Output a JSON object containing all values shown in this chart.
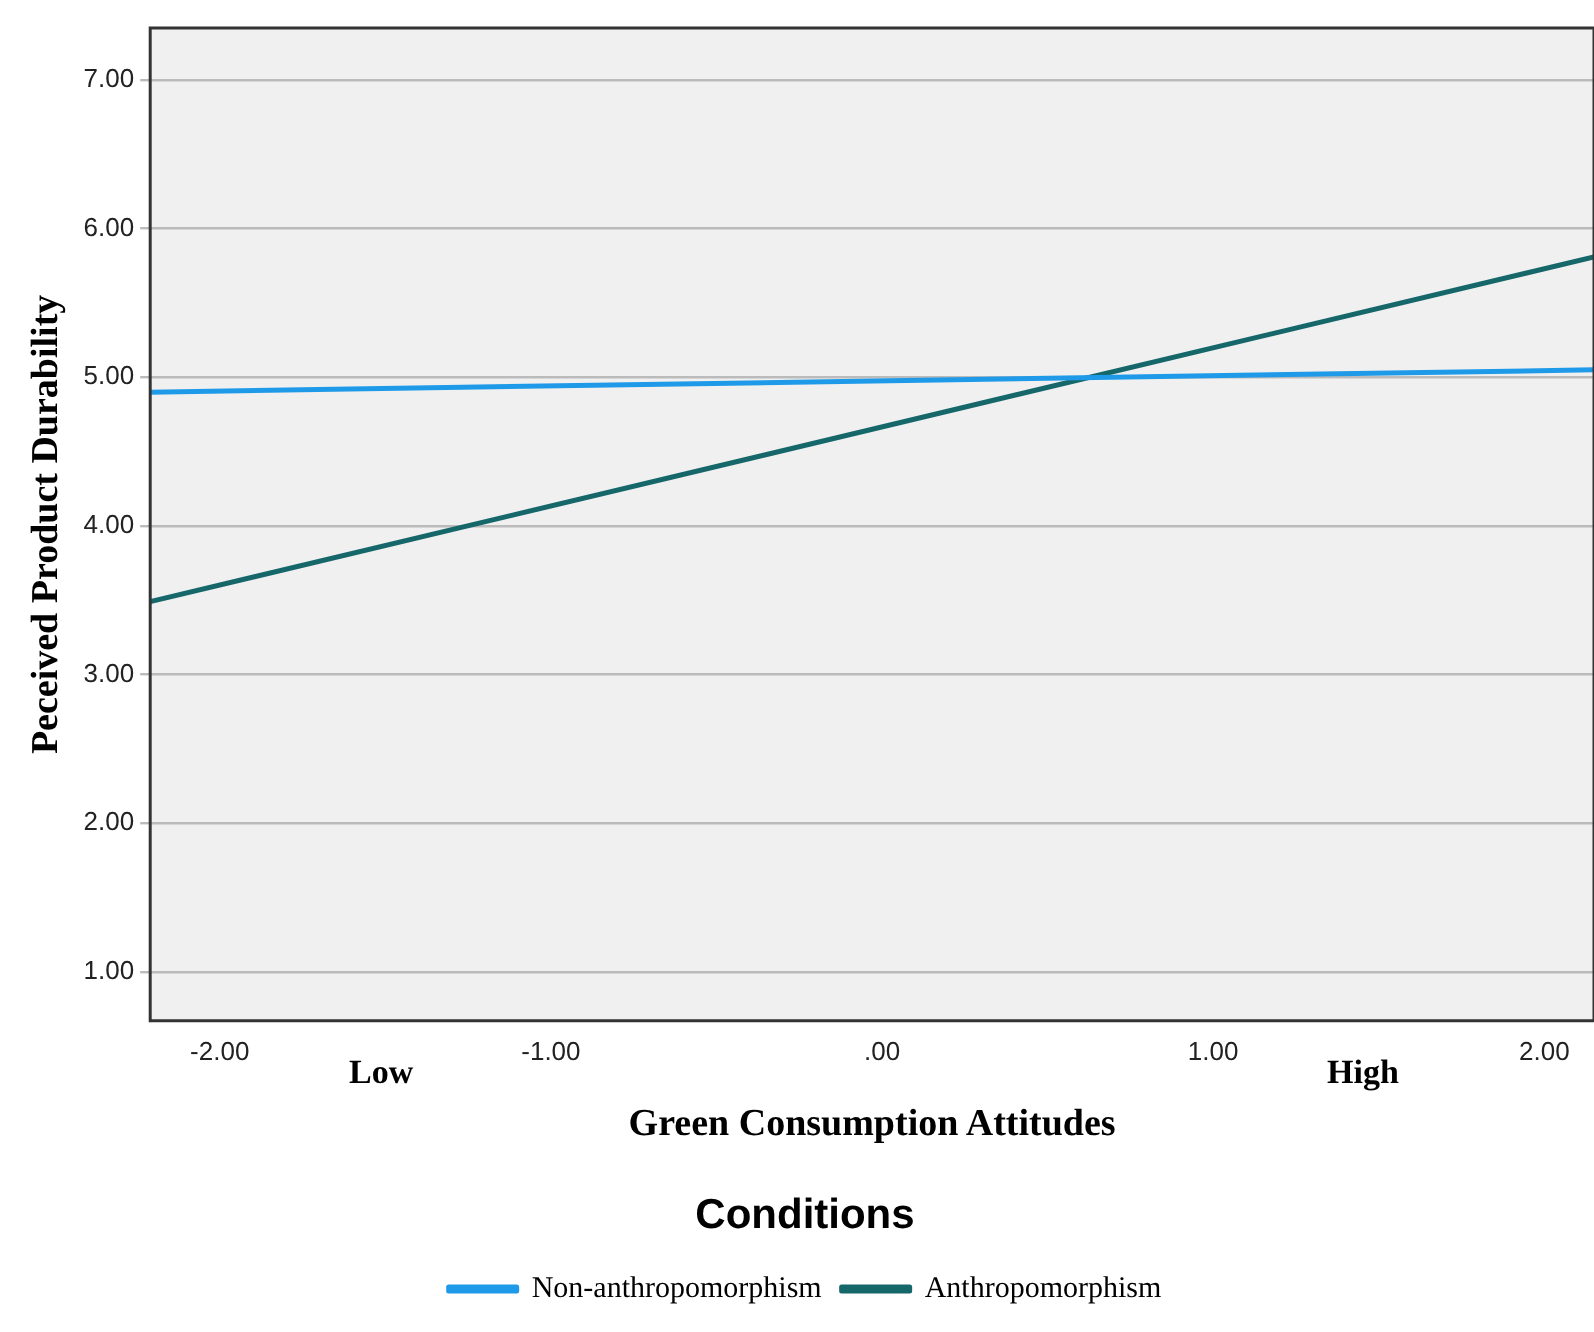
{
  "chart_data": {
    "type": "line",
    "xlabel": "Green Consumption Attitudes",
    "ylabel": "Peceived Product Durability",
    "legend_title": "Conditions",
    "legend": "bottom",
    "grid": "y",
    "marker": "none",
    "line_style": "solid",
    "xlim": [
      -2.21,
      2.15
    ],
    "xticks": [
      {
        "value": -2,
        "label": "-2.00"
      },
      {
        "value": -1,
        "label": "-1.00"
      },
      {
        "value": 0,
        "label": ".00"
      },
      {
        "value": 1,
        "label": "1.00"
      },
      {
        "value": 2,
        "label": "2.00"
      }
    ],
    "ylim": [
      0.67,
      7.35
    ],
    "yticks": [
      {
        "value": 1,
        "label": "1.00"
      },
      {
        "value": 2,
        "label": "2.00"
      },
      {
        "value": 3,
        "label": "3.00"
      },
      {
        "value": 4,
        "label": "4.00"
      },
      {
        "value": 5,
        "label": "5.00"
      },
      {
        "value": 6,
        "label": "6.00"
      },
      {
        "value": 7,
        "label": "7.00"
      }
    ],
    "annotations": [
      "Low",
      "High"
    ],
    "x": [
      -2.21,
      2.15
    ],
    "series": [
      {
        "name": "Non-anthropomorphism",
        "color": "#1f9ae8",
        "values": [
          4.9,
          5.05
        ]
      },
      {
        "name": "Anthropomorphism",
        "color": "#16676a",
        "values": [
          3.49,
          5.81
        ]
      }
    ]
  }
}
